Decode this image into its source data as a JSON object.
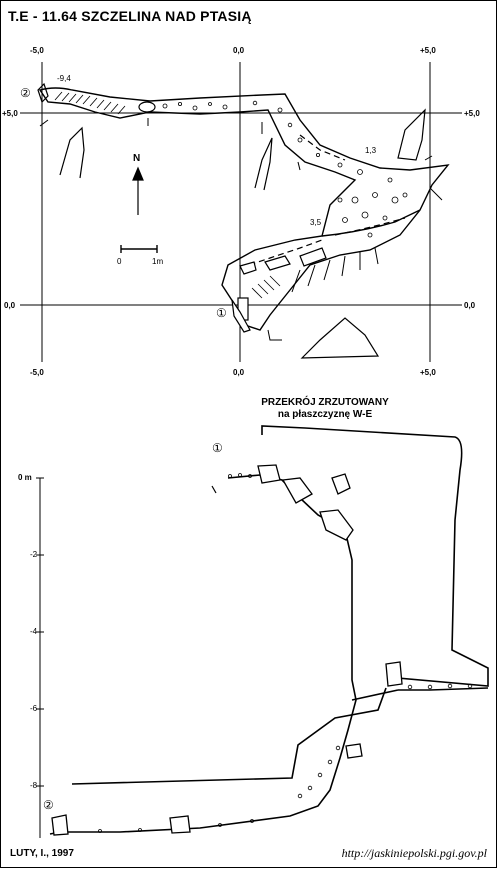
{
  "title": "T.E - 11.64  SZCZELINA NAD PTASIĄ",
  "plan": {
    "grid_labels": {
      "x_top_left": "-5,0",
      "x_top_mid": "0,0",
      "x_top_right": "+5,0",
      "x_bot_left": "-5,0",
      "x_bot_mid": "0,0",
      "x_bot_right": "+5,0",
      "y_left_top": "+5,0",
      "y_right_top": "+5,0",
      "y_left_bot": "0,0",
      "y_right_bot": "0,0"
    },
    "north_label": "N",
    "scale": {
      "start": "0",
      "end": "1m"
    },
    "depth_marks": [
      "-9,4",
      "1,3",
      "3,5"
    ],
    "entrance_markers": [
      "②",
      "①"
    ]
  },
  "section": {
    "title_line1": "PRZEKRÓJ ZRZUTOWANY",
    "title_line2": "na płaszczyznę W-E",
    "depth_axis": [
      "0 m",
      "-2",
      "-4",
      "-6",
      "-8"
    ],
    "entrance_markers": [
      "①",
      "②"
    ]
  },
  "footer": {
    "author": "LUTY, I., 1997",
    "url": "http://jaskiniepolski.pgi.gov.pl"
  }
}
